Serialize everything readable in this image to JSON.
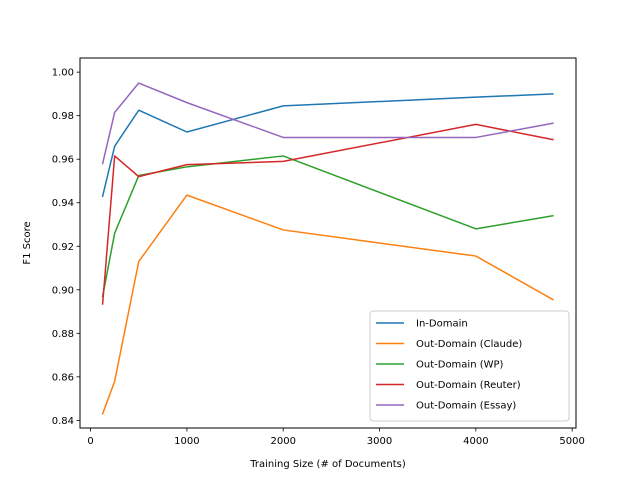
{
  "chart_data": {
    "type": "line",
    "title": "",
    "xlabel": "Training Size (# of Documents)",
    "ylabel": "F1 Score",
    "xlim": [
      -110,
      5040
    ],
    "ylim": [
      0.8365,
      1.0065
    ],
    "xticks": [
      0,
      1000,
      2000,
      3000,
      4000,
      5000
    ],
    "xtick_labels": [
      "0",
      "1000",
      "2000",
      "3000",
      "4000",
      "5000"
    ],
    "yticks": [
      0.84,
      0.86,
      0.88,
      0.9,
      0.92,
      0.94,
      0.96,
      0.98,
      1.0
    ],
    "ytick_labels": [
      "0.84",
      "0.86",
      "0.88",
      "0.90",
      "0.92",
      "0.94",
      "0.96",
      "0.98",
      "1.00"
    ],
    "grid": false,
    "legend_position": "lower-right",
    "x": [
      125,
      250,
      500,
      1000,
      2000,
      4000,
      4800
    ],
    "series": [
      {
        "name": "In-Domain",
        "color": "#1f77b4",
        "values": [
          0.943,
          0.966,
          0.9825,
          0.9725,
          0.9845,
          0.9885,
          0.99
        ]
      },
      {
        "name": "Out-Domain (Claude)",
        "color": "#ff7f0e",
        "values": [
          0.843,
          0.858,
          0.913,
          0.9435,
          0.9275,
          0.9155,
          0.8955
        ]
      },
      {
        "name": "Out-Domain (WP)",
        "color": "#2ca02c",
        "values": [
          0.897,
          0.926,
          0.9525,
          0.9565,
          0.9615,
          0.928,
          0.934
        ]
      },
      {
        "name": "Out-Domain (Reuter)",
        "color": "#d62728",
        "values": [
          0.8935,
          0.9615,
          0.952,
          0.9575,
          0.959,
          0.976,
          0.969
        ]
      },
      {
        "name": "Out-Domain (Essay)",
        "color": "#9467bd",
        "values": [
          0.958,
          0.9815,
          0.995,
          0.986,
          0.97,
          0.97,
          0.9765
        ]
      }
    ]
  }
}
